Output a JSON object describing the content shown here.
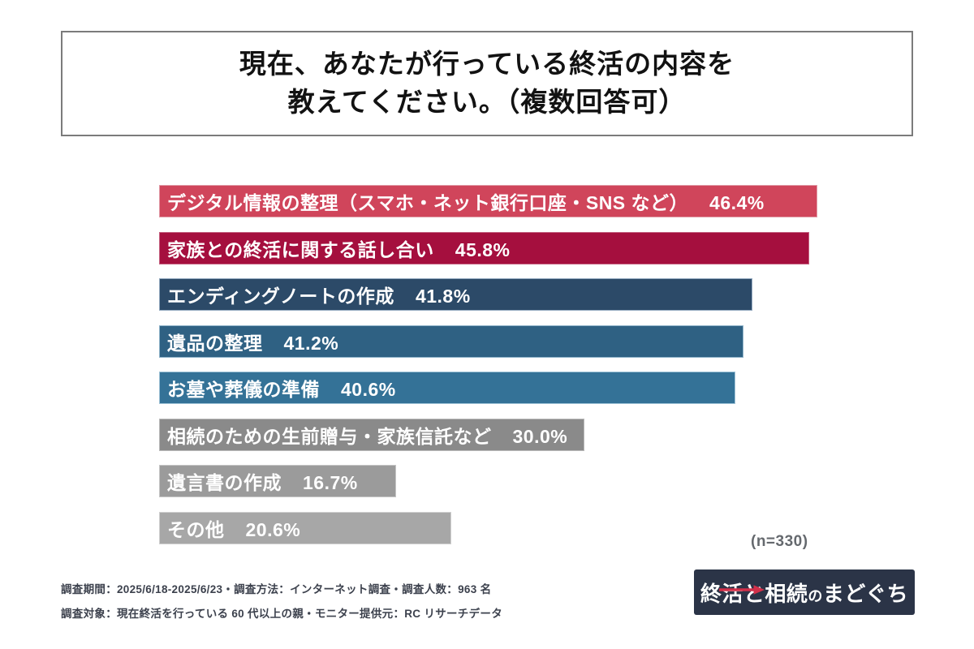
{
  "title": {
    "line1": "現在、あなたが行っている終活の内容を",
    "line2": "教えてください。（複数回答可）"
  },
  "chart_data": {
    "type": "bar",
    "orientation": "horizontal",
    "value_unit": "%",
    "xlim": [
      0,
      47.6
    ],
    "grid": false,
    "legend": false,
    "sample_label": "(n=330)",
    "bars": [
      {
        "label": "デジタル情報の整理（スマホ・ネット銀行口座・SNS など）",
        "value": 46.4,
        "value_label": "46.4%",
        "color": "#d0455b",
        "border_color": "#e09aa5"
      },
      {
        "label": "家族との終活に関する話し合い",
        "value": 45.8,
        "value_label": "45.8%",
        "color": "#a50f3e",
        "border_color": "#c4607f"
      },
      {
        "label": "エンディングノートの作成",
        "value": 41.8,
        "value_label": "41.8%",
        "color": "#2c4a68",
        "border_color": "#93a9bf"
      },
      {
        "label": "遺品の整理",
        "value": 41.2,
        "value_label": "41.2%",
        "color": "#2f6183",
        "border_color": "#8fb3c9"
      },
      {
        "label": "お墓や葬儀の準備",
        "value": 40.6,
        "value_label": "40.6%",
        "color": "#347297",
        "border_color": "#9ec2d6"
      },
      {
        "label": "相続のための生前贈与・家族信託など",
        "value": 30.0,
        "value_label": "30.0%",
        "color": "#8a8a8a",
        "border_color": "#b9b9b9"
      },
      {
        "label": "遺言書の作成",
        "value": 16.7,
        "value_label": "16.7%",
        "color": "#9b9b9b",
        "border_color": "#c5c5c5"
      },
      {
        "label": "その他",
        "value": 20.6,
        "value_label": "20.6%",
        "color": "#a7a7a7",
        "border_color": "#cfcfcf"
      }
    ]
  },
  "footer": {
    "line1": "調査期間：2025/6/18-2025/6/23・調査方法：インターネット調査・調査人数：963 名",
    "line2": "調査対象：現在終活を行っている 60 代以上の親・モニター提供元：RC リサーチデータ"
  },
  "logo": {
    "shukatsu": "終活",
    "to": "と",
    "souzoku": "相続",
    "no": "の",
    "madoguchi": "まどぐち",
    "bg_color": "#2b3447",
    "arrow_color": "#d2304a"
  }
}
